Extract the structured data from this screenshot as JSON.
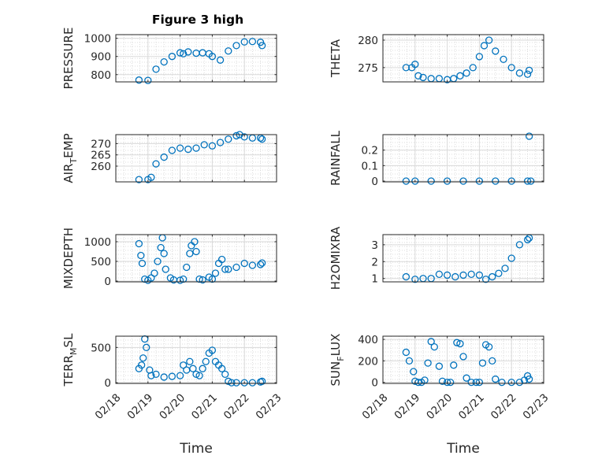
{
  "figure_title": "Figure 3 high",
  "marker_color": "#0072BD",
  "chart_data": [
    {
      "type": "scatter",
      "ylabel": "PRESSURE",
      "xlabel": "",
      "xlim": [
        0,
        5
      ],
      "ylim": [
        760,
        1020
      ],
      "yticks": [
        800,
        900,
        1000
      ],
      "ytick_labels": [
        "800",
        "900",
        "1000"
      ],
      "xticks": [],
      "xtick_labels": [],
      "series": [
        {
          "x": [
            0.72,
            1.0,
            1.25,
            1.5,
            1.75,
            2.0,
            2.1,
            2.25,
            2.5,
            2.7,
            2.9,
            3.0,
            3.25,
            3.5,
            3.75,
            4.0,
            4.25,
            4.5,
            4.55
          ],
          "y": [
            770,
            768,
            830,
            870,
            900,
            920,
            915,
            925,
            918,
            920,
            915,
            900,
            880,
            930,
            960,
            980,
            982,
            978,
            960
          ]
        }
      ]
    },
    {
      "type": "scatter",
      "ylabel": "THETA",
      "xlabel": "",
      "xlim": [
        0,
        5
      ],
      "ylim": [
        272.4,
        281
      ],
      "yticks": [
        275,
        280
      ],
      "ytick_labels": [
        "275",
        "280"
      ],
      "xticks": [],
      "xtick_labels": [],
      "series": [
        {
          "x": [
            0.72,
            0.9,
            1.0,
            1.1,
            1.25,
            1.5,
            1.75,
            2.0,
            2.2,
            2.4,
            2.6,
            2.8,
            3.0,
            3.15,
            3.3,
            3.5,
            3.75,
            4.0,
            4.25,
            4.5,
            4.55
          ],
          "y": [
            275,
            275,
            275.6,
            273.5,
            273.2,
            273,
            273,
            272.8,
            273,
            273.5,
            274,
            275,
            277,
            279,
            280,
            278,
            276.5,
            275,
            274,
            273.8,
            274.5
          ]
        }
      ]
    },
    {
      "type": "scatter",
      "ylabel": "AIR_TEMP",
      "xlabel": "",
      "xlim": [
        0,
        5
      ],
      "ylim": [
        253,
        274
      ],
      "yticks": [
        260,
        265,
        270
      ],
      "ytick_labels": [
        "260",
        "265",
        "270"
      ],
      "xticks": [],
      "xtick_labels": [],
      "series": [
        {
          "x": [
            0.72,
            1.0,
            1.1,
            1.25,
            1.5,
            1.75,
            2.0,
            2.25,
            2.5,
            2.75,
            3.0,
            3.25,
            3.5,
            3.75,
            3.85,
            4.0,
            4.25,
            4.5,
            4.55
          ],
          "y": [
            254,
            254,
            255,
            261,
            264,
            267,
            268,
            267.5,
            268,
            269.5,
            269,
            270.5,
            272,
            273.5,
            274,
            273,
            272.5,
            272.5,
            272
          ]
        }
      ]
    },
    {
      "type": "scatter",
      "ylabel": "RAINFALL",
      "xlabel": "",
      "xlim": [
        0,
        5
      ],
      "ylim": [
        -0.005,
        0.3
      ],
      "yticks": [
        0,
        0.1,
        0.2
      ],
      "ytick_labels": [
        "0",
        "0.1",
        "0.2"
      ],
      "xticks": [],
      "xtick_labels": [],
      "series": [
        {
          "x": [
            0.72,
            1.0,
            1.5,
            2.0,
            2.5,
            3.0,
            3.5,
            4.0,
            4.5,
            4.6,
            4.55
          ],
          "y": [
            0,
            0,
            0,
            0,
            0,
            0,
            0,
            0,
            0,
            0,
            0.29
          ]
        }
      ]
    },
    {
      "type": "scatter",
      "ylabel": "MIXDEPTH",
      "xlabel": "",
      "xlim": [
        0,
        5
      ],
      "ylim": [
        -20,
        1180
      ],
      "yticks": [
        0,
        500,
        1000
      ],
      "ytick_labels": [
        "0",
        "500",
        "1000"
      ],
      "xticks": [],
      "xtick_labels": [],
      "series": [
        {
          "x": [
            0.72,
            0.78,
            0.82,
            0.9,
            1.0,
            1.1,
            1.2,
            1.3,
            1.4,
            1.45,
            1.5,
            1.55,
            1.7,
            1.8,
            2.0,
            2.1,
            2.2,
            2.3,
            2.35,
            2.45,
            2.5,
            2.6,
            2.7,
            2.9,
            3.0,
            3.1,
            3.2,
            3.3,
            3.4,
            3.5,
            3.75,
            4.0,
            4.25,
            4.5,
            4.55
          ],
          "y": [
            950,
            650,
            450,
            50,
            20,
            80,
            200,
            500,
            850,
            1100,
            700,
            300,
            80,
            30,
            20,
            50,
            350,
            700,
            900,
            1000,
            750,
            50,
            30,
            100,
            50,
            200,
            450,
            550,
            300,
            300,
            350,
            450,
            400,
            420,
            460
          ]
        }
      ]
    },
    {
      "type": "scatter",
      "ylabel": "H2OMIXRA",
      "xlabel": "",
      "xlim": [
        0,
        5
      ],
      "ylim": [
        0.8,
        3.6
      ],
      "yticks": [
        1,
        2,
        3
      ],
      "ytick_labels": [
        "1",
        "2",
        "3"
      ],
      "xticks": [],
      "xtick_labels": [],
      "series": [
        {
          "x": [
            0.72,
            1.0,
            1.25,
            1.5,
            1.75,
            2.0,
            2.25,
            2.5,
            2.75,
            3.0,
            3.2,
            3.4,
            3.6,
            3.8,
            4.0,
            4.25,
            4.5,
            4.55
          ],
          "y": [
            1.1,
            0.95,
            1.0,
            1.0,
            1.25,
            1.2,
            1.1,
            1.2,
            1.25,
            1.2,
            0.95,
            1.1,
            1.3,
            1.6,
            2.2,
            3.0,
            3.3,
            3.4
          ]
        }
      ]
    },
    {
      "type": "scatter",
      "ylabel": "TERR_MSL",
      "xlabel": "Time",
      "xlim": [
        0,
        5
      ],
      "ylim": [
        -10,
        660
      ],
      "xticks": [
        0,
        1,
        2,
        3,
        4,
        5
      ],
      "xtick_labels": [
        "02/18",
        "02/19",
        "02/20",
        "02/21",
        "02/22",
        "02/23"
      ],
      "yticks": [
        0,
        500
      ],
      "ytick_labels": [
        "0",
        "500"
      ],
      "series": [
        {
          "x": [
            0.72,
            0.8,
            0.85,
            0.9,
            0.95,
            1.05,
            1.1,
            1.25,
            1.5,
            1.75,
            2.0,
            2.1,
            2.2,
            2.3,
            2.4,
            2.5,
            2.6,
            2.7,
            2.8,
            2.9,
            3.0,
            3.1,
            3.2,
            3.3,
            3.4,
            3.5,
            3.6,
            3.75,
            4.0,
            4.25,
            4.5,
            4.55
          ],
          "y": [
            200,
            250,
            350,
            620,
            500,
            180,
            100,
            120,
            80,
            90,
            100,
            250,
            180,
            300,
            200,
            120,
            100,
            200,
            300,
            420,
            460,
            300,
            250,
            200,
            120,
            20,
            0,
            0,
            0,
            0,
            10,
            20
          ]
        }
      ]
    },
    {
      "type": "scatter",
      "ylabel": "SUN_FLUX",
      "xlabel": "Time",
      "xlim": [
        0,
        5
      ],
      "ylim": [
        -10,
        430
      ],
      "xticks": [
        0,
        1,
        2,
        3,
        4,
        5
      ],
      "xtick_labels": [
        "02/18",
        "02/19",
        "02/20",
        "02/21",
        "02/22",
        "02/23"
      ],
      "yticks": [
        0,
        200,
        400
      ],
      "ytick_labels": [
        "0",
        "200",
        "400"
      ],
      "series": [
        {
          "x": [
            0.72,
            0.82,
            0.95,
            1.0,
            1.1,
            1.2,
            1.3,
            1.4,
            1.5,
            1.6,
            1.75,
            1.85,
            2.0,
            2.1,
            2.2,
            2.3,
            2.4,
            2.5,
            2.6,
            2.75,
            2.9,
            3.0,
            3.1,
            3.2,
            3.3,
            3.4,
            3.5,
            3.7,
            4.0,
            4.25,
            4.4,
            4.5,
            4.55
          ],
          "y": [
            280,
            200,
            100,
            10,
            0,
            0,
            20,
            180,
            380,
            330,
            150,
            10,
            0,
            0,
            160,
            370,
            360,
            240,
            40,
            0,
            0,
            0,
            180,
            350,
            330,
            200,
            30,
            0,
            0,
            0,
            20,
            60,
            30
          ]
        }
      ]
    }
  ]
}
